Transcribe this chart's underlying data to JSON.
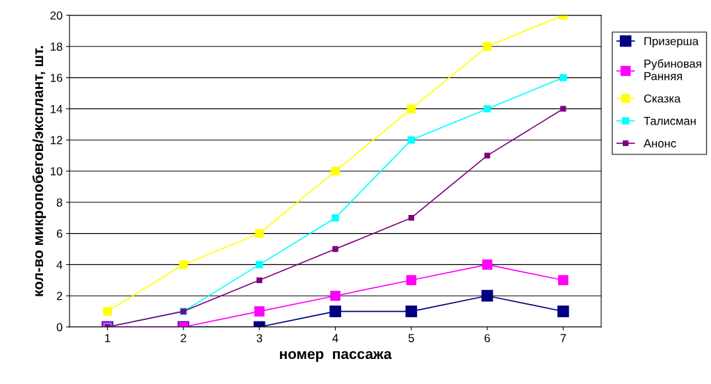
{
  "chart_data": {
    "type": "line",
    "xlabel": "номер  пассажа",
    "ylabel": "кол-во микропобегов/эксплант, шт.",
    "categories": [
      "1",
      "2",
      "3",
      "4",
      "5",
      "6",
      "7"
    ],
    "series": [
      {
        "name": "Призерша",
        "color": "#000080",
        "values": [
          0,
          0,
          0,
          1,
          1,
          2,
          1
        ]
      },
      {
        "name": "Рубиновая Ранняя",
        "color": "#ff00ff",
        "values": [
          0,
          0,
          1,
          2,
          3,
          4,
          3
        ]
      },
      {
        "name": "Сказка",
        "color": "#ffff00",
        "values": [
          1,
          4,
          6,
          10,
          14,
          18,
          20
        ]
      },
      {
        "name": "Талисман",
        "color": "#00ffff",
        "values": [
          0,
          1,
          4,
          7,
          12,
          14,
          16
        ]
      },
      {
        "name": "Анонс",
        "color": "#800080",
        "values": [
          0,
          1,
          3,
          5,
          7,
          11,
          14
        ]
      }
    ],
    "ylim": [
      0,
      20
    ],
    "yticks": [
      0,
      2,
      4,
      6,
      8,
      10,
      12,
      14,
      16,
      18,
      20
    ],
    "grid": "y",
    "legend": "right",
    "marker": "square",
    "line_style": "solid"
  }
}
